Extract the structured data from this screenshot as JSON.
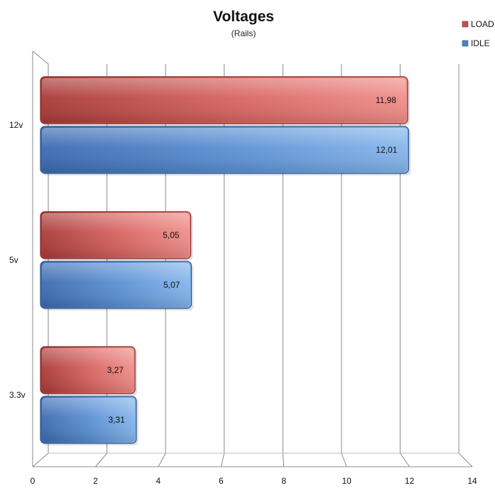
{
  "chart_data": {
    "type": "bar",
    "orientation": "horizontal",
    "title": "Voltages",
    "subtitle": "(Rails)",
    "categories": [
      "12v",
      "5v",
      "3.3v"
    ],
    "series": [
      {
        "name": "LOAD",
        "values": [
          11.98,
          5.05,
          3.27
        ],
        "labels": [
          "11,98",
          "5,05",
          "3,27"
        ],
        "color": "#c0504d"
      },
      {
        "name": "IDLE",
        "values": [
          12.01,
          5.07,
          3.31
        ],
        "labels": [
          "12,01",
          "5,07",
          "3,31"
        ],
        "color": "#4f81bd"
      }
    ],
    "xlim": [
      0,
      14
    ],
    "x_ticks": [
      "0",
      "2",
      "4",
      "6",
      "8",
      "10",
      "12",
      "14"
    ],
    "grid": true,
    "legend_position": "top-right"
  }
}
